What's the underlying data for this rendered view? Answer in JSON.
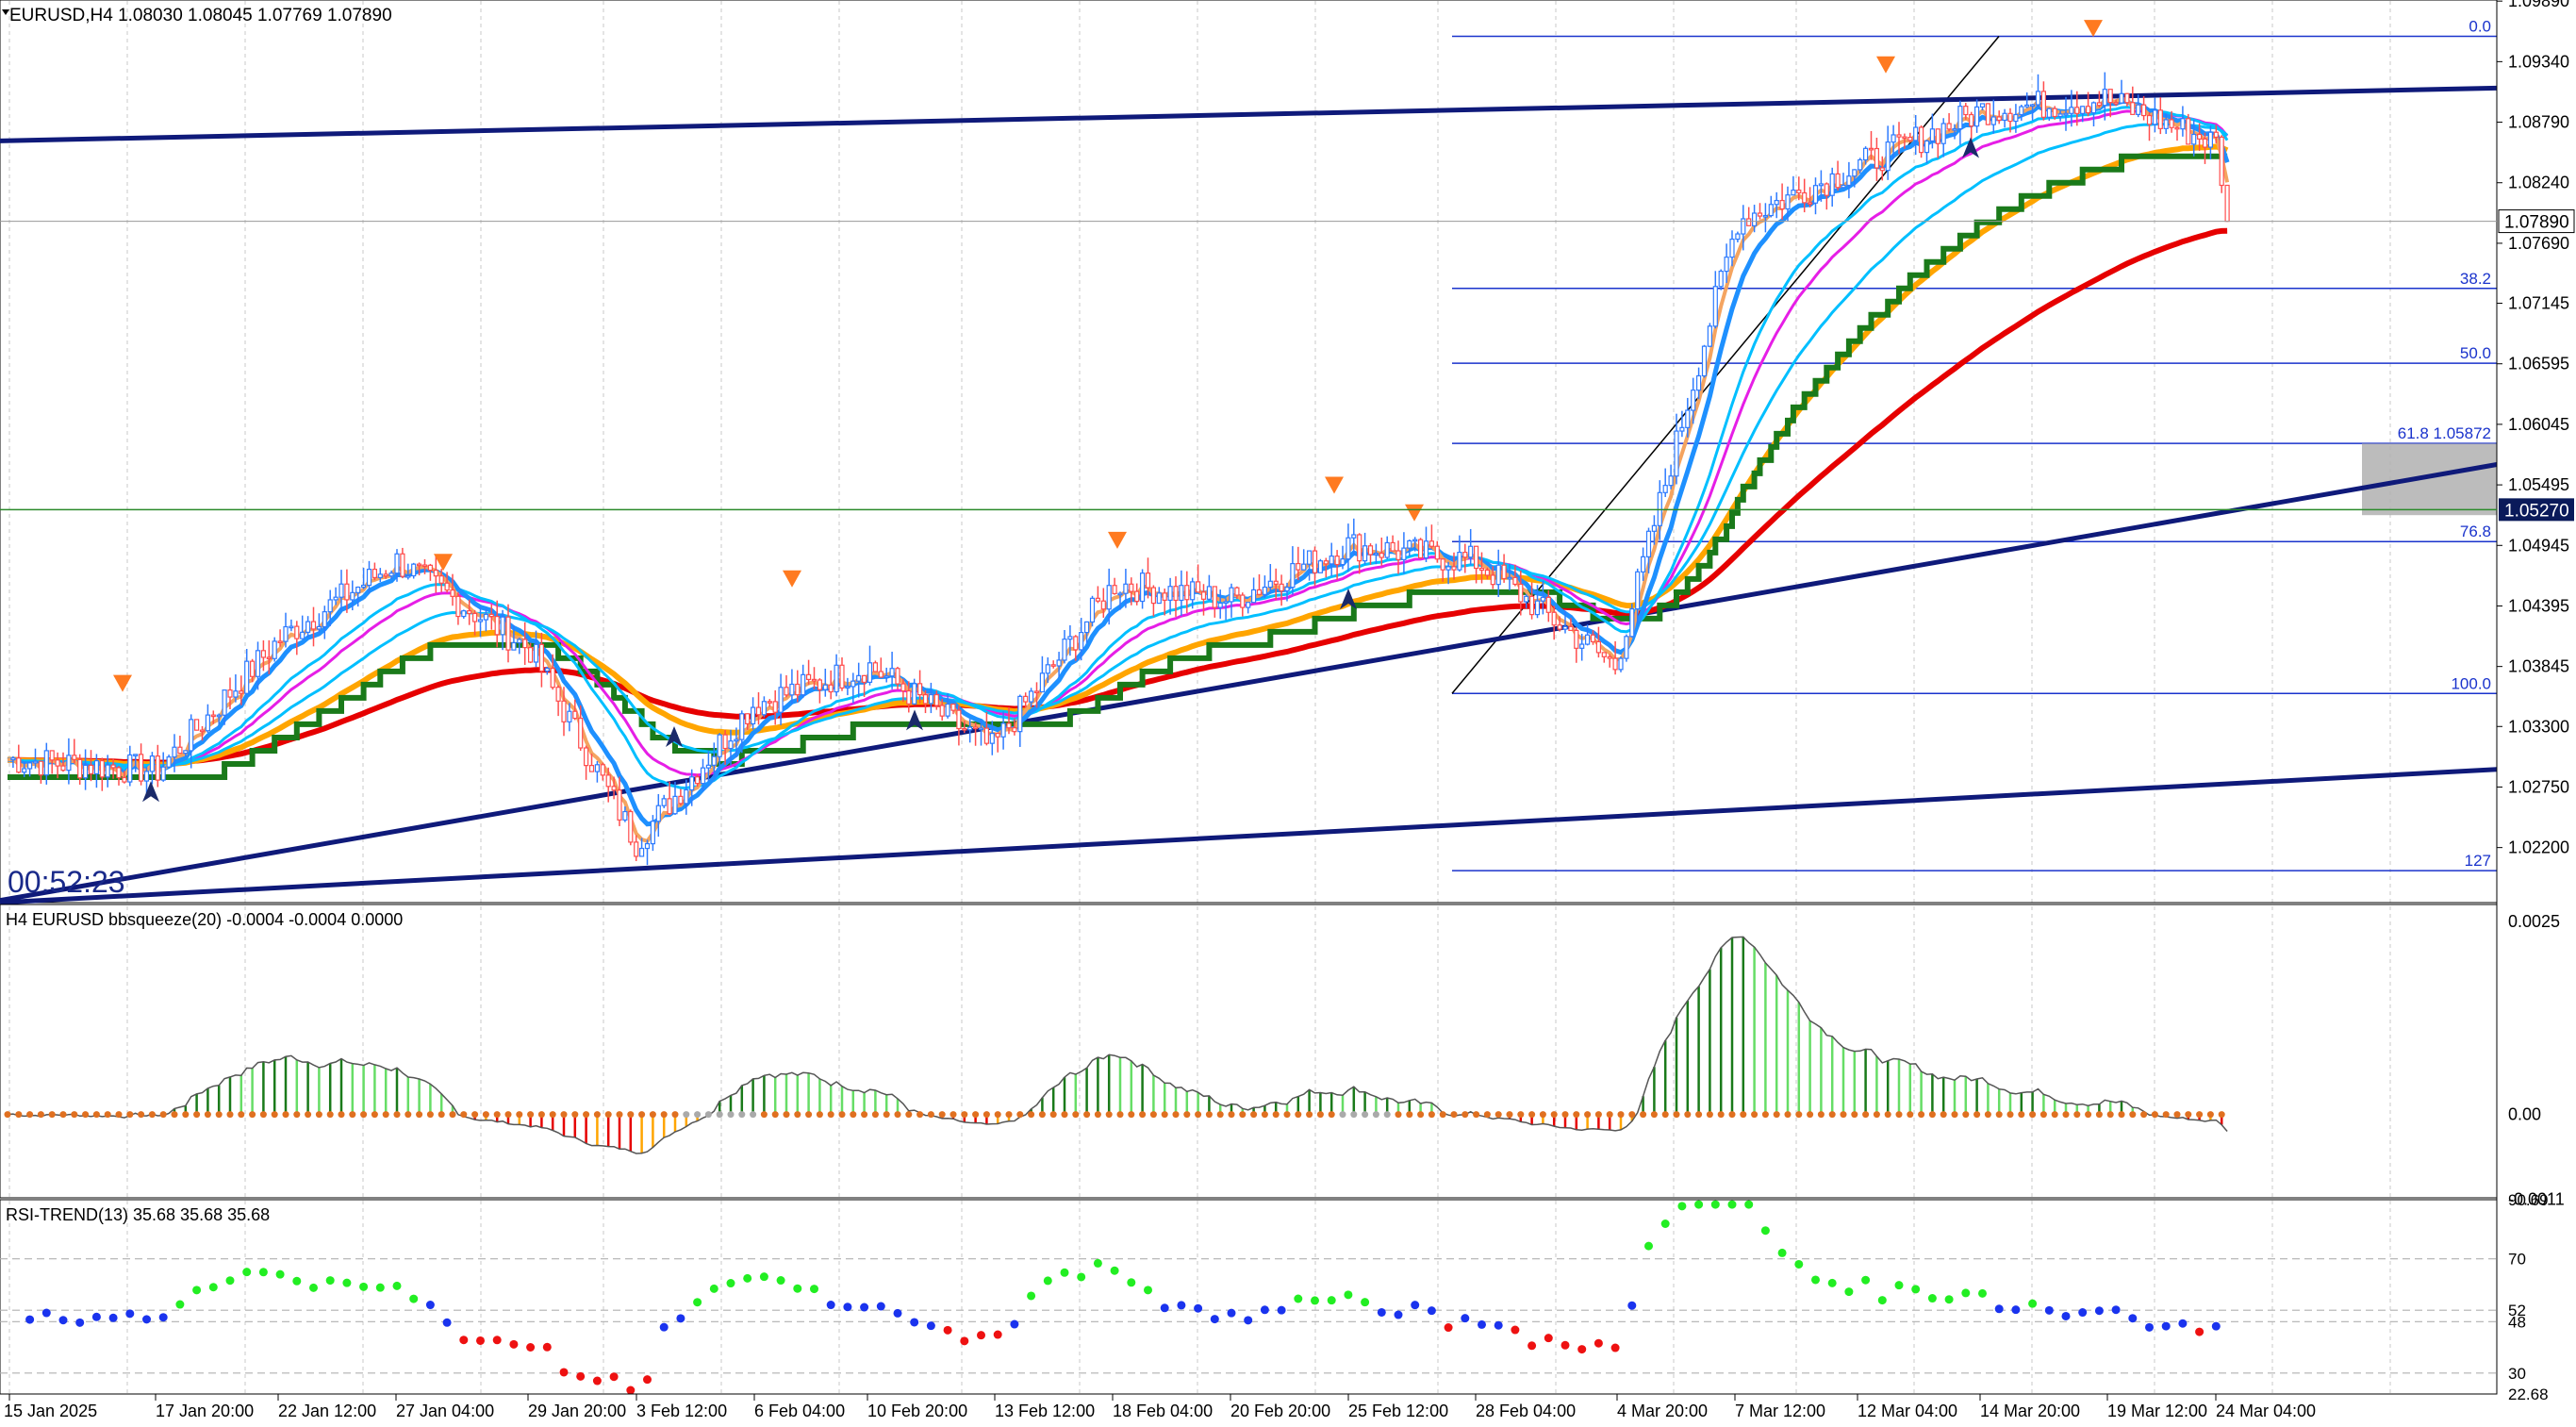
{
  "header": {
    "symbol_line": "EURUSD,H4  1.08030 1.08045 1.07769 1.07890",
    "timer": "00:52:23"
  },
  "colors": {
    "background": "#ffffff",
    "grid": "#c8c8c8",
    "axis_text": "#000000",
    "bull_candle": "#2e7bff",
    "bear_candle": "#ff4d4d",
    "ema_fast": "#f4a460",
    "ema_mid": "#1e90ff",
    "ema_slow": "#00bfff",
    "ma_magenta": "#e61ee6",
    "ma_red": "#e60000",
    "ma_orange": "#ffa500",
    "stepline_green": "#1a7a1a",
    "trend_navy": "#0f1a7a",
    "fib": "#1a33cc",
    "squeeze_pos_dark": "#1a7a1a",
    "squeeze_pos_light": "#66dd66",
    "squeeze_neg_red": "#e60000",
    "squeeze_neg_orange": "#ffa500",
    "squeeze_dot": "#e07020",
    "rsi_up": "#22ee22",
    "rsi_down": "#ee1111",
    "rsi_neutral": "#1a33ee",
    "price_marker_bg": "#0a1a5a"
  },
  "main_panel": {
    "price_axis_labels": [
      "1.09890",
      "1.09340",
      "1.08790",
      "1.08240",
      "1.07690",
      "1.07145",
      "1.06595",
      "1.06045",
      "1.05495",
      "1.04945",
      "1.04395",
      "1.03845",
      "1.03300",
      "1.02750",
      "1.02200"
    ],
    "current_price_label": "1.07890",
    "marker_price_label": "1.05270",
    "fib_labels": [
      {
        "text": "0.0",
        "price": 1.0957
      },
      {
        "text": "38.2",
        "price": 1.0728
      },
      {
        "text": "50.0",
        "price": 1.066
      },
      {
        "text": "61.8  1.05872",
        "price": 1.05872
      },
      {
        "text": "76.8",
        "price": 1.0498
      },
      {
        "text": "100.0",
        "price": 1.036
      },
      {
        "text": "127",
        "price": 1.0199
      }
    ]
  },
  "x_axis_labels": [
    "15 Jan 2025",
    "17 Jan 20:00",
    "22 Jan 12:00",
    "27 Jan 04:00",
    "29 Jan 20:00",
    "3 Feb 12:00",
    "6 Feb 04:00",
    "10 Feb 20:00",
    "13 Feb 12:00",
    "18 Feb 04:00",
    "20 Feb 20:00",
    "25 Feb 12:00",
    "28 Feb 04:00",
    "4 Mar 20:00",
    "7 Mar 12:00",
    "12 Mar 04:00",
    "14 Mar 20:00",
    "19 Mar 12:00",
    "24 Mar 04:00"
  ],
  "squeeze_panel": {
    "title": "H4 EURUSD bbsqueeze(20) -0.0004 -0.0004 0.0000",
    "axis_labels": [
      "0.0025",
      "0.00",
      "-0.0011"
    ]
  },
  "rsi_panel": {
    "title": "RSI-TREND(13) 35.68 35.68 35.68",
    "axis_labels": [
      "90.69",
      "70",
      "52",
      "48",
      "30",
      "22.68"
    ]
  },
  "chart_data": {
    "type": "candlestick",
    "symbol": "EURUSD",
    "timeframe": "H4",
    "ohlc_last": {
      "open": 1.0803,
      "high": 1.08045,
      "low": 1.07769,
      "close": 1.0789
    },
    "ylim": [
      1.017,
      1.099
    ],
    "close_path": [
      {
        "date": "15 Jan 2025",
        "close": 1.03
      },
      {
        "date": "17 Jan 20:00",
        "close": 1.029
      },
      {
        "date": "22 Jan 12:00",
        "close": 1.041
      },
      {
        "date": "27 Jan 04:00",
        "close": 1.048
      },
      {
        "date": "29 Jan 20:00",
        "close": 1.04
      },
      {
        "date": "31 Jan",
        "close": 1.0225
      },
      {
        "date": "3 Feb 12:00",
        "close": 1.035
      },
      {
        "date": "6 Feb 04:00",
        "close": 1.0385
      },
      {
        "date": "10 Feb 20:00",
        "close": 1.031
      },
      {
        "date": "13 Feb 12:00",
        "close": 1.046
      },
      {
        "date": "18 Feb 04:00",
        "close": 1.0445
      },
      {
        "date": "20 Feb 20:00",
        "close": 1.0495
      },
      {
        "date": "25 Feb 12:00",
        "close": 1.048
      },
      {
        "date": "28 Feb 04:00",
        "close": 1.0385
      },
      {
        "date": "4 Mar 20:00",
        "close": 1.079
      },
      {
        "date": "7 Mar 12:00",
        "close": 1.084
      },
      {
        "date": "12 Mar 04:00",
        "close": 1.089
      },
      {
        "date": "14 Mar 20:00",
        "close": 1.09
      },
      {
        "date": "19 Mar 12:00",
        "close": 1.086
      },
      {
        "date": "24 Mar 04:00",
        "close": 1.08
      },
      {
        "date": "24 Mar",
        "close": 1.0789
      }
    ],
    "indicators": {
      "bbsqueeze": {
        "period": 20,
        "last": -0.0004,
        "range": [
          -0.0011,
          0.0025
        ]
      },
      "rsi_trend": {
        "period": 13,
        "last": 35.68,
        "levels": [
          70,
          52,
          48,
          30
        ],
        "range": [
          22.68,
          90.69
        ]
      }
    }
  }
}
